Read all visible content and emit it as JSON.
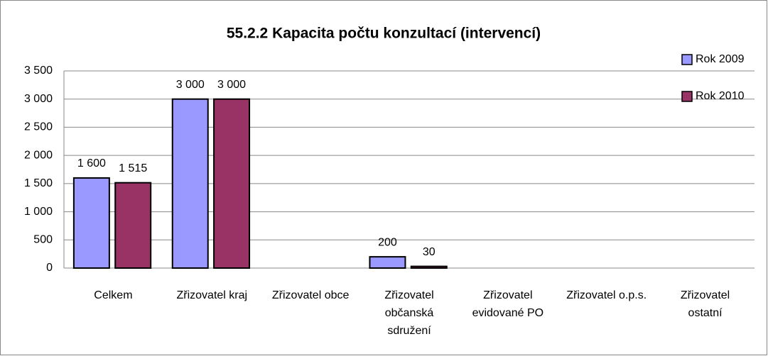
{
  "chart_data": {
    "type": "bar",
    "title": "55.2.2 Kapacita počtu konzultací (intervencí)",
    "categories": [
      "Celkem",
      "Zřizovatel kraj",
      "Zřizovatel obce",
      "Zřizovatel občanská sdružení",
      "Zřizovatel evidované PO",
      "Zřizovatel o.p.s.",
      "Zřizovatel ostatní"
    ],
    "series": [
      {
        "name": "Rok 2009",
        "color": "#9999ff",
        "values": [
          1600,
          3000,
          null,
          200,
          null,
          null,
          null
        ],
        "value_labels": [
          "1 600",
          "3 000",
          null,
          "200",
          null,
          null,
          null
        ]
      },
      {
        "name": "Rok 2010",
        "color": "#993366",
        "values": [
          1515,
          3000,
          null,
          30,
          null,
          null,
          null
        ],
        "value_labels": [
          "1 515",
          "3 000",
          null,
          "30",
          null,
          null,
          null
        ]
      }
    ],
    "ylim": [
      0,
      3500
    ],
    "yticks": [
      0,
      {
        "value": 500,
        "label": "500"
      },
      {
        "value": 1000,
        "label": "1 000"
      },
      {
        "value": 1500,
        "label": "1 500"
      },
      {
        "value": 2000,
        "label": "2 000"
      },
      {
        "value": 2500,
        "label": "2 500"
      },
      {
        "value": 3000,
        "label": "3 000"
      },
      {
        "value": 3500,
        "label": "3 500"
      }
    ],
    "grid": true,
    "legend": "right"
  }
}
